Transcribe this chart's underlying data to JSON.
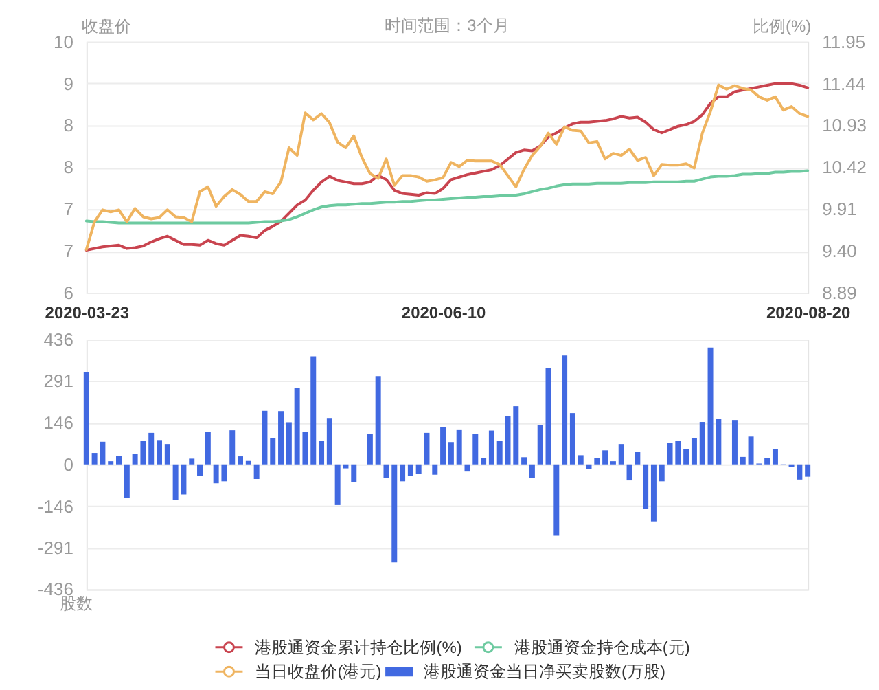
{
  "chart_data": [
    {
      "type": "line",
      "title": "时间范围：3个月",
      "ylabel": "收盘价",
      "y2label": "比例(%)",
      "categories": [
        "2020-03-23",
        null,
        null,
        null,
        null,
        null,
        null,
        null,
        null,
        null,
        null,
        null,
        null,
        null,
        null,
        null,
        null,
        null,
        null,
        null,
        null,
        null,
        null,
        null,
        null,
        null,
        null,
        null,
        null,
        null,
        null,
        null,
        null,
        null,
        null,
        null,
        null,
        null,
        null,
        null,
        null,
        null,
        null,
        null,
        "2020-06-10",
        null,
        null,
        null,
        null,
        null,
        null,
        null,
        null,
        null,
        null,
        null,
        null,
        null,
        null,
        null,
        null,
        null,
        null,
        null,
        null,
        null,
        null,
        null,
        null,
        null,
        null,
        null,
        null,
        null,
        null,
        null,
        null,
        null,
        null,
        null,
        null,
        null,
        null,
        null,
        null,
        null,
        null,
        null,
        null,
        "2020-08-20"
      ],
      "series": [
        {
          "name": "港股通资金累计持仓比例(%)",
          "color": "#c9444f",
          "axis": "y2",
          "values": [
            9.41,
            9.43,
            9.45,
            9.46,
            9.47,
            9.43,
            9.44,
            9.46,
            9.51,
            9.55,
            9.58,
            9.53,
            9.48,
            9.48,
            9.47,
            9.53,
            9.49,
            9.47,
            9.53,
            9.59,
            9.58,
            9.56,
            9.65,
            9.7,
            9.76,
            9.86,
            9.96,
            10.02,
            10.14,
            10.24,
            10.31,
            10.26,
            10.24,
            10.22,
            10.22,
            10.24,
            10.32,
            10.27,
            10.14,
            10.1,
            10.09,
            10.08,
            10.11,
            10.1,
            10.16,
            10.27,
            10.3,
            10.33,
            10.35,
            10.37,
            10.39,
            10.44,
            10.52,
            10.6,
            10.63,
            10.62,
            10.68,
            10.79,
            10.84,
            10.9,
            10.95,
            10.97,
            10.97,
            10.98,
            10.99,
            11.01,
            11.04,
            11.02,
            11.03,
            10.97,
            10.88,
            10.84,
            10.88,
            10.92,
            10.94,
            10.98,
            11.06,
            11.2,
            11.28,
            11.28,
            11.34,
            11.36,
            11.38,
            11.4,
            11.42,
            11.44,
            11.44,
            11.44,
            11.42,
            11.39
          ]
        },
        {
          "name": "港股通资金持仓成本(元)",
          "color": "#6dcaa0",
          "values": [
            7.03,
            7.02,
            7.02,
            7.01,
            7.0,
            7.0,
            7.0,
            7.0,
            7.0,
            7.0,
            7.0,
            7.0,
            7.0,
            7.0,
            7.0,
            7.0,
            7.0,
            7.0,
            7.0,
            7.0,
            7.0,
            7.01,
            7.02,
            7.02,
            7.03,
            7.05,
            7.09,
            7.14,
            7.19,
            7.23,
            7.25,
            7.26,
            7.26,
            7.27,
            7.28,
            7.28,
            7.29,
            7.3,
            7.3,
            7.31,
            7.31,
            7.32,
            7.33,
            7.33,
            7.34,
            7.35,
            7.36,
            7.37,
            7.37,
            7.38,
            7.38,
            7.39,
            7.39,
            7.4,
            7.42,
            7.45,
            7.48,
            7.5,
            7.53,
            7.55,
            7.56,
            7.56,
            7.56,
            7.57,
            7.57,
            7.57,
            7.57,
            7.58,
            7.58,
            7.58,
            7.59,
            7.59,
            7.59,
            7.59,
            7.6,
            7.6,
            7.63,
            7.66,
            7.67,
            7.67,
            7.68,
            7.7,
            7.7,
            7.71,
            7.71,
            7.73,
            7.73,
            7.74,
            7.74,
            7.75
          ]
        },
        {
          "name": "当日收盘价(港元)",
          "color": "#efb460",
          "values": [
            6.62,
            7.02,
            7.19,
            7.16,
            7.19,
            7.02,
            7.21,
            7.09,
            7.06,
            7.08,
            7.19,
            7.09,
            7.08,
            7.02,
            7.45,
            7.52,
            7.24,
            7.38,
            7.48,
            7.41,
            7.31,
            7.31,
            7.45,
            7.42,
            7.59,
            8.08,
            7.97,
            8.58,
            8.48,
            8.57,
            8.44,
            8.16,
            8.08,
            8.25,
            7.94,
            7.71,
            7.64,
            7.92,
            7.54,
            7.68,
            7.68,
            7.66,
            7.6,
            7.62,
            7.65,
            7.87,
            7.81,
            7.9,
            7.89,
            7.89,
            7.89,
            7.84,
            7.68,
            7.52,
            7.77,
            7.97,
            8.1,
            8.29,
            8.13,
            8.38,
            8.33,
            8.32,
            8.15,
            8.17,
            7.92,
            8.0,
            7.97,
            8.06,
            7.9,
            7.94,
            7.68,
            7.84,
            7.83,
            7.83,
            7.85,
            7.79,
            8.29,
            8.6,
            8.98,
            8.92,
            8.97,
            8.93,
            8.91,
            8.81,
            8.76,
            8.81,
            8.62,
            8.67,
            8.57,
            8.53
          ]
        }
      ],
      "ylim": [
        6,
        9.6
      ],
      "yticks": [
        6,
        {
          "value": 6.6,
          "label": "7"
        },
        {
          "value": 7.2,
          "label": "7"
        },
        {
          "value": 7.8,
          "label": "8"
        },
        {
          "value": 8.4,
          "label": "8"
        },
        9,
        {
          "value": 9.6,
          "label": "10"
        }
      ],
      "y2lim": [
        8.89,
        11.95
      ],
      "y2ticks": [
        8.89,
        {
          "value": 9.4,
          "label": "9.40"
        },
        9.91,
        10.42,
        10.93,
        11.44,
        11.95
      ],
      "grid": "y",
      "legend": "bottom"
    },
    {
      "type": "bar",
      "ylabel": "股数",
      "categories": [
        "2020-03-23",
        null,
        null,
        null,
        null,
        null,
        null,
        null,
        null,
        null,
        null,
        null,
        null,
        null,
        null,
        null,
        null,
        null,
        null,
        null,
        null,
        null,
        null,
        null,
        null,
        null,
        null,
        null,
        null,
        null,
        null,
        null,
        null,
        null,
        null,
        null,
        null,
        null,
        null,
        null,
        null,
        null,
        null,
        null,
        "2020-06-10",
        null,
        null,
        null,
        null,
        null,
        null,
        null,
        null,
        null,
        null,
        null,
        null,
        null,
        null,
        null,
        null,
        null,
        null,
        null,
        null,
        null,
        null,
        null,
        null,
        null,
        null,
        null,
        null,
        null,
        null,
        null,
        null,
        null,
        null,
        null,
        null,
        null,
        null,
        null,
        null,
        null,
        null,
        null,
        null,
        "2020-08-20"
      ],
      "series": [
        {
          "name": "港股通资金当日净买卖股数(万股)",
          "color": "#4169e1",
          "values": [
            323,
            40,
            79,
            11,
            29,
            -117,
            37,
            82,
            110,
            85,
            71,
            -125,
            -105,
            20,
            -39,
            114,
            -66,
            -59,
            119,
            28,
            12,
            -51,
            187,
            91,
            186,
            147,
            267,
            114,
            377,
            82,
            162,
            -142,
            -14,
            -63,
            null,
            107,
            308,
            -48,
            -342,
            -59,
            -40,
            -32,
            110,
            -36,
            130,
            78,
            122,
            -25,
            107,
            23,
            118,
            83,
            169,
            203,
            25,
            -48,
            138,
            335,
            -249,
            380,
            179,
            32,
            -17,
            22,
            49,
            11,
            71,
            -56,
            45,
            -155,
            -199,
            -59,
            74,
            83,
            53,
            91,
            148,
            408,
            158,
            null,
            155,
            26,
            97,
            3,
            22,
            53,
            -3,
            -9,
            -53,
            -43
          ]
        }
      ],
      "ylim": [
        -436,
        436
      ],
      "yticks": [
        -436,
        -291,
        -146,
        0,
        146,
        291,
        436
      ],
      "grid": "y",
      "tick_labels": "y",
      "legend": "bottom"
    }
  ]
}
